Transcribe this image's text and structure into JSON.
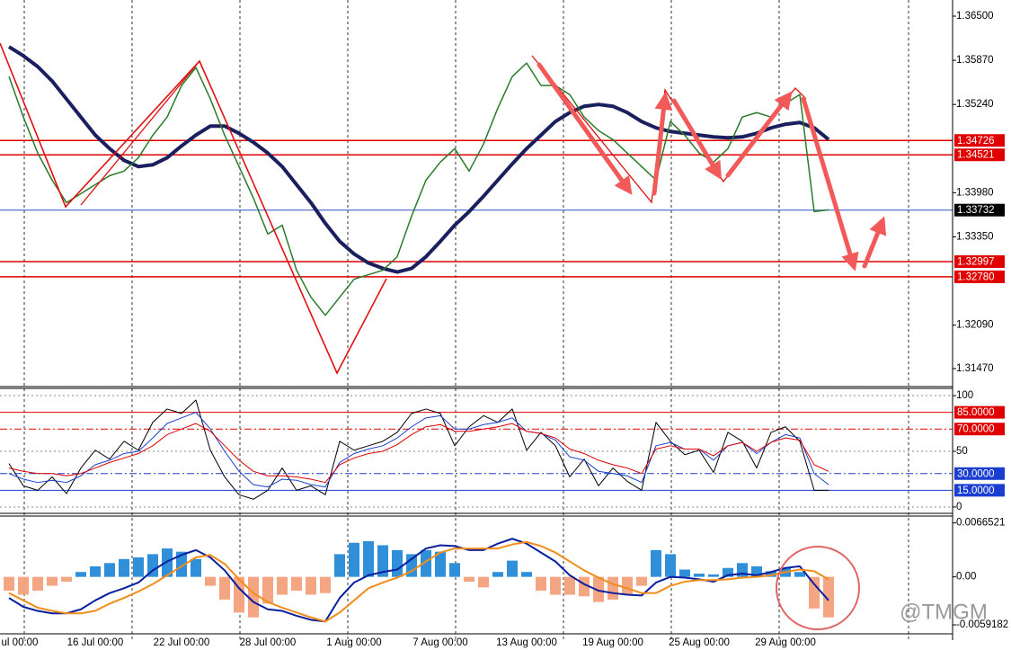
{
  "chart_data": [
    {
      "type": "line",
      "ylim": [
        1.31213,
        1.36731
      ],
      "yticks": [
        {
          "value": 1.365,
          "label": "1.36500"
        },
        {
          "value": 1.3587,
          "label": "1.35870"
        },
        {
          "value": 1.3524,
          "label": "1.35240"
        },
        {
          "value": 1.3398,
          "label": "1.33980"
        },
        {
          "value": 1.3335,
          "label": "1.33350"
        },
        {
          "value": 1.3209,
          "label": "1.32090"
        },
        {
          "value": 1.3147,
          "label": "1.31470"
        }
      ],
      "levels": [
        {
          "value": 1.34726,
          "color": "#e00000",
          "box": "#e00000"
        },
        {
          "value": 1.34521,
          "color": "#e00000",
          "box": "#e00000"
        },
        {
          "value": 1.33732,
          "color": "#2b50c8",
          "box": "#000000"
        },
        {
          "value": 1.32997,
          "color": "#e00000",
          "box": "#e00000"
        },
        {
          "value": 1.3278,
          "label": "1.32780",
          "color": "#e00000",
          "box": "#e00000"
        }
      ],
      "series": [
        {
          "color": "#1a1f5e",
          "width": 4,
          "values": [
            1.36063,
            1.35934,
            1.3578,
            1.35574,
            1.35317,
            1.3506,
            1.34803,
            1.3461,
            1.34443,
            1.34353,
            1.34379,
            1.3448,
            1.34648,
            1.34803,
            1.34931,
            1.34931,
            1.34828,
            1.347,
            1.34546,
            1.34353,
            1.34096,
            1.33838,
            1.33543,
            1.33286,
            1.33106,
            1.32977,
            1.329,
            1.32849,
            1.329,
            1.33067,
            1.33286,
            1.33517,
            1.3371,
            1.33929,
            1.3416,
            1.34391,
            1.3461,
            1.34803,
            1.34996,
            1.35124,
            1.35214,
            1.3524,
            1.35214,
            1.35124,
            1.34996,
            1.34906,
            1.34854,
            1.34828,
            1.34803,
            1.34777,
            1.34764,
            1.34777,
            1.34828,
            1.34906,
            1.34957,
            1.34983,
            1.34906,
            1.3474
          ]
        },
        {
          "color": "#2a7a2a",
          "width": 1.5,
          "values": [
            1.35638,
            1.3506,
            1.34546,
            1.3416,
            1.33838,
            1.33967,
            1.34096,
            1.34224,
            1.34289,
            1.3448,
            1.348,
            1.3506,
            1.3551,
            1.35767,
            1.3532,
            1.348,
            1.34353,
            1.33903,
            1.3339,
            1.33517,
            1.32874,
            1.32489,
            1.32231,
            1.32489,
            1.32746,
            1.3281,
            1.32874,
            1.33067,
            1.33646,
            1.3416,
            1.34417,
            1.3461,
            1.34289,
            1.34674,
            1.35189,
            1.35638,
            1.35831,
            1.3551,
            1.3551,
            1.35381,
            1.3506,
            1.34867,
            1.34739,
            1.34546,
            1.34353,
            1.3416,
            1.34996,
            1.348,
            1.34546,
            1.34417,
            1.3461,
            1.3506,
            1.35124,
            1.3506,
            1.35253,
            1.35381,
            1.3371,
            1.33736
          ]
        }
      ]
    },
    {
      "type": "line",
      "ylim": [
        -5.7,
        106.5
      ],
      "yticks": [
        100,
        50,
        0
      ],
      "levels": [
        {
          "value": 85,
          "label": "85.0000",
          "color": "#e00000",
          "box": "#e00000",
          "dash": "none"
        },
        {
          "value": 70,
          "label": "70.0000",
          "color": "#e00000",
          "box": "#e00000",
          "dash": "8 3 2 3"
        },
        {
          "value": 30,
          "label": "30.0000",
          "color": "#1a3fd0",
          "box": "#1a3fd0",
          "dash": "8 3 2 3"
        },
        {
          "value": 15,
          "label": "15.0000",
          "color": "#1a3fd0",
          "box": "#1a3fd0",
          "dash": "none"
        }
      ],
      "series": [
        {
          "color": "#000000",
          "width": 1,
          "values": [
            39,
            19,
            15,
            27,
            12,
            35,
            51,
            43,
            59,
            51,
            76,
            88,
            84,
            96,
            51,
            27,
            11,
            7,
            15,
            35,
            15,
            19,
            11,
            59,
            51,
            55,
            59,
            67,
            84,
            88,
            84,
            55,
            72,
            82,
            76,
            88,
            51,
            67,
            55,
            27,
            43,
            19,
            35,
            23,
            15,
            76,
            59,
            47,
            51,
            31,
            67,
            59,
            35,
            67,
            72,
            59,
            15,
            15
          ]
        },
        {
          "color": "#1a3fd0",
          "width": 1,
          "values": [
            30,
            25,
            22,
            24,
            22,
            28,
            38,
            42,
            48,
            50,
            62,
            75,
            80,
            85,
            70,
            50,
            32,
            20,
            18,
            25,
            24,
            20,
            18,
            40,
            48,
            52,
            55,
            62,
            72,
            80,
            82,
            70,
            70,
            74,
            76,
            80,
            68,
            66,
            60,
            45,
            42,
            32,
            30,
            28,
            22,
            55,
            58,
            52,
            52,
            42,
            55,
            58,
            48,
            58,
            65,
            62,
            30,
            20
          ]
        },
        {
          "color": "#e00000",
          "width": 1,
          "values": [
            35,
            32,
            30,
            30,
            28,
            30,
            35,
            40,
            44,
            48,
            55,
            65,
            70,
            75,
            68,
            55,
            42,
            32,
            28,
            28,
            27,
            25,
            22,
            38,
            44,
            48,
            50,
            56,
            65,
            72,
            74,
            68,
            68,
            70,
            72,
            75,
            68,
            66,
            62,
            52,
            48,
            42,
            38,
            35,
            30,
            52,
            55,
            52,
            52,
            46,
            55,
            58,
            50,
            58,
            62,
            60,
            38,
            32
          ]
        }
      ]
    },
    {
      "type": "combo",
      "ylim": [
        -0.0078,
        0.0075
      ],
      "yticks": [
        0.0066521,
        {
          "value": 0,
          "label": "0.00"
        },
        -0.0059182
      ],
      "categories": [
        "ul 00:00",
        null,
        null,
        null,
        null,
        null,
        "16 Jul 00:00",
        null,
        null,
        null,
        null,
        null,
        "22 Jul 00:00",
        null,
        null,
        null,
        null,
        null,
        "28 Jul 00:00",
        null,
        null,
        null,
        null,
        null,
        "1 Aug 00:00",
        null,
        null,
        null,
        null,
        null,
        "7 Aug 00:00",
        null,
        null,
        null,
        null,
        null,
        "13 Aug 00:00",
        null,
        null,
        null,
        null,
        null,
        "19 Aug 00:00",
        null,
        null,
        null,
        null,
        null,
        "25 Aug 00:00",
        null,
        null,
        null,
        null,
        null,
        "29 Aug 00:00",
        null,
        null,
        null
      ],
      "histogram": {
        "pos_color": "#2f8fd8",
        "neg_color": "#f4a582",
        "values": [
          -0.0017,
          -0.0022,
          -0.0017,
          -0.0011,
          -0.0006,
          0.0006,
          0.0013,
          0.0017,
          0.0022,
          0.0024,
          0.0028,
          0.0035,
          0.0031,
          0.0022,
          -0.0011,
          -0.0028,
          -0.0044,
          -0.005,
          -0.0033,
          -0.0022,
          -0.0017,
          -0.0022,
          -0.002,
          0.0028,
          0.0042,
          0.0044,
          0.0039,
          0.0033,
          0.0028,
          0.0033,
          0.0031,
          0.0017,
          -0.0006,
          -0.0013,
          0.0006,
          0.002,
          0.0006,
          -0.0017,
          -0.0022,
          -0.0022,
          -0.0024,
          -0.0031,
          -0.0028,
          -0.0022,
          -0.0011,
          0.0033,
          0.0028,
          0.0009,
          0.0004,
          0.0003,
          0.0011,
          0.0017,
          0.0013,
          0.0007,
          0.0011,
          0.0006,
          -0.0039,
          -0.005
        ]
      },
      "series": [
        {
          "color": "#0a1fa0",
          "width": 2,
          "values": [
            -0.0026,
            -0.0037,
            -0.0042,
            -0.0045,
            -0.0045,
            -0.004,
            -0.0029,
            -0.002,
            -0.0014,
            -0.0007,
            0.0008,
            0.0019,
            0.0027,
            0.0033,
            0.0024,
            0.0008,
            -0.0014,
            -0.0031,
            -0.004,
            -0.0042,
            -0.0048,
            -0.0053,
            -0.0055,
            -0.0026,
            -0.0007,
            0.0002,
            0.0006,
            0.0009,
            0.0022,
            0.0035,
            0.0039,
            0.0038,
            0.0033,
            0.0033,
            0.0041,
            0.0047,
            0.0041,
            0.003,
            0.0019,
            0.0002,
            -0.0009,
            -0.0017,
            -0.002,
            -0.0022,
            -0.0023,
            -0.0007,
            0,
            -0.0001,
            -0.0003,
            -0.0006,
            0.0002,
            0.0004,
            0.0002,
            0.0006,
            0.0011,
            0.0013,
            -0.0009,
            -0.0029
          ]
        },
        {
          "color": "#f28c1a",
          "width": 2,
          "values": [
            -0.002,
            -0.0029,
            -0.0038,
            -0.0042,
            -0.0045,
            -0.0045,
            -0.0042,
            -0.0033,
            -0.0026,
            -0.0018,
            -0.0009,
            0.0002,
            0.0013,
            0.0024,
            0.0027,
            0.0016,
            -0.0003,
            -0.002,
            -0.0031,
            -0.0038,
            -0.0044,
            -0.005,
            -0.0055,
            -0.0044,
            -0.0029,
            -0.0014,
            -0.0007,
            -0.0001,
            0.0007,
            0.0019,
            0.003,
            0.0035,
            0.0035,
            0.0035,
            0.0035,
            0.004,
            0.0043,
            0.0038,
            0.003,
            0.0019,
            0.0008,
            -0.0001,
            -0.0009,
            -0.0014,
            -0.002,
            -0.002,
            -0.0011,
            -0.0006,
            -0.0004,
            -0.0004,
            -0.0003,
            -0.0001,
            0,
            0.0002,
            0.0006,
            0.0009,
            0.0007,
            -0.0003
          ]
        }
      ]
    }
  ],
  "watermark": "@TMGM"
}
